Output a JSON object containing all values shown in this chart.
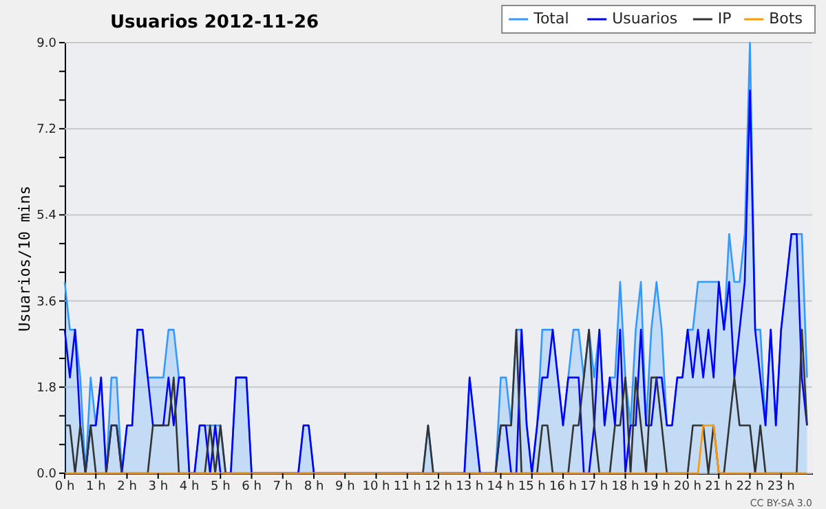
{
  "chart_data": {
    "type": "line",
    "title": "Usuarios  2012-11-26",
    "ylabel": "Usuarios/10 mins",
    "annotations": [
      "CC BY-SA 3.0"
    ],
    "x": [
      0,
      0.167,
      0.333,
      0.5,
      0.667,
      0.833,
      1,
      1.167,
      1.333,
      1.5,
      1.667,
      1.833,
      2,
      2.167,
      2.333,
      2.5,
      2.667,
      2.833,
      3,
      3.167,
      3.333,
      3.5,
      3.667,
      3.833,
      4,
      4.167,
      4.333,
      4.5,
      4.667,
      4.833,
      5,
      5.167,
      5.333,
      5.5,
      5.667,
      5.833,
      6,
      6.167,
      6.333,
      6.5,
      6.667,
      6.833,
      7,
      7.167,
      7.333,
      7.5,
      7.667,
      7.833,
      8,
      8.167,
      8.333,
      8.5,
      8.667,
      8.833,
      9,
      9.167,
      9.333,
      9.5,
      9.667,
      9.833,
      10,
      10.167,
      10.333,
      10.5,
      10.667,
      10.833,
      11,
      11.167,
      11.333,
      11.5,
      11.667,
      11.833,
      12,
      12.167,
      12.333,
      12.5,
      12.667,
      12.833,
      13,
      13.167,
      13.333,
      13.5,
      13.667,
      13.833,
      14,
      14.167,
      14.333,
      14.5,
      14.667,
      14.833,
      15,
      15.167,
      15.333,
      15.5,
      15.667,
      15.833,
      16,
      16.167,
      16.333,
      16.5,
      16.667,
      16.833,
      17,
      17.167,
      17.333,
      17.5,
      17.667,
      17.833,
      18,
      18.167,
      18.333,
      18.5,
      18.667,
      18.833,
      19,
      19.167,
      19.333,
      19.5,
      19.667,
      19.833,
      20,
      20.167,
      20.333,
      20.5,
      20.667,
      20.833,
      21,
      21.167,
      21.333,
      21.5,
      21.667,
      21.833,
      22,
      22.167,
      22.333,
      22.5,
      22.667,
      22.833,
      23,
      23.167,
      23.333,
      23.5,
      23.667,
      23.833
    ],
    "series": [
      {
        "name": "Total",
        "type": "area",
        "color": "#3399ff",
        "values": [
          4,
          3,
          3,
          2,
          0,
          2,
          1,
          2,
          0,
          2,
          2,
          0,
          1,
          1,
          3,
          3,
          2,
          2,
          2,
          2,
          3,
          3,
          2,
          2,
          0,
          0,
          1,
          1,
          1,
          1,
          1,
          0,
          0,
          2,
          2,
          2,
          0,
          0,
          0,
          0,
          0,
          0,
          0,
          0,
          0,
          0,
          1,
          1,
          0,
          0,
          0,
          0,
          0,
          0,
          0,
          0,
          0,
          0,
          0,
          0,
          0,
          0,
          0,
          0,
          0,
          0,
          0,
          0,
          0,
          0,
          1,
          0,
          0,
          0,
          0,
          0,
          0,
          0,
          2,
          1,
          0,
          0,
          0,
          0,
          2,
          2,
          1,
          3,
          3,
          1,
          0,
          1,
          3,
          3,
          3,
          2,
          1,
          2,
          3,
          3,
          2,
          3,
          2,
          3,
          1,
          2,
          2,
          4,
          2,
          1,
          3,
          4,
          1,
          3,
          4,
          3,
          1,
          1,
          2,
          2,
          3,
          3,
          4,
          4,
          4,
          4,
          4,
          3,
          5,
          4,
          4,
          5,
          9,
          3,
          3,
          1,
          3,
          1,
          3,
          4,
          5,
          5,
          5,
          2
        ]
      },
      {
        "name": "Usuarios",
        "color": "#0000ff",
        "values": [
          3,
          2,
          3,
          1,
          0,
          1,
          1,
          2,
          0,
          1,
          1,
          0,
          1,
          1,
          3,
          3,
          2,
          1,
          1,
          1,
          2,
          1,
          2,
          2,
          0,
          0,
          1,
          1,
          0,
          1,
          0,
          0,
          0,
          2,
          2,
          2,
          0,
          0,
          0,
          0,
          0,
          0,
          0,
          0,
          0,
          0,
          1,
          1,
          0,
          0,
          0,
          0,
          0,
          0,
          0,
          0,
          0,
          0,
          0,
          0,
          0,
          0,
          0,
          0,
          0,
          0,
          0,
          0,
          0,
          0,
          0,
          0,
          0,
          0,
          0,
          0,
          0,
          0,
          2,
          1,
          0,
          0,
          0,
          0,
          1,
          1,
          0,
          0,
          3,
          1,
          0,
          1,
          2,
          2,
          3,
          2,
          1,
          2,
          2,
          2,
          0,
          0,
          1,
          3,
          1,
          2,
          1,
          3,
          0,
          1,
          1,
          3,
          1,
          1,
          2,
          2,
          1,
          1,
          2,
          2,
          3,
          2,
          3,
          2,
          3,
          2,
          4,
          3,
          4,
          2,
          3,
          4,
          8,
          3,
          2,
          1,
          3,
          1,
          3,
          4,
          5,
          5,
          2,
          1
        ]
      },
      {
        "name": "IP",
        "color": "#333333",
        "values": [
          1,
          1,
          0,
          1,
          0,
          1,
          0,
          0,
          0,
          1,
          1,
          0,
          0,
          0,
          0,
          0,
          0,
          1,
          1,
          1,
          1,
          2,
          0,
          0,
          0,
          0,
          0,
          0,
          1,
          0,
          1,
          0,
          0,
          0,
          0,
          0,
          0,
          0,
          0,
          0,
          0,
          0,
          0,
          0,
          0,
          0,
          0,
          0,
          0,
          0,
          0,
          0,
          0,
          0,
          0,
          0,
          0,
          0,
          0,
          0,
          0,
          0,
          0,
          0,
          0,
          0,
          0,
          0,
          0,
          0,
          1,
          0,
          0,
          0,
          0,
          0,
          0,
          0,
          0,
          0,
          0,
          0,
          0,
          0,
          1,
          1,
          1,
          3,
          0,
          0,
          0,
          0,
          1,
          1,
          0,
          0,
          0,
          0,
          1,
          1,
          2,
          3,
          1,
          0,
          0,
          0,
          1,
          1,
          2,
          0,
          2,
          1,
          0,
          2,
          2,
          1,
          0,
          0,
          0,
          0,
          0,
          1,
          1,
          1,
          0,
          1,
          0,
          0,
          1,
          2,
          1,
          1,
          1,
          0,
          1,
          0,
          0,
          0,
          0,
          0,
          0,
          0,
          3,
          1
        ]
      },
      {
        "name": "Bots",
        "color": "#ff9900",
        "values": [
          0,
          0,
          0,
          0,
          0,
          0,
          0,
          0,
          0,
          0,
          0,
          0,
          0,
          0,
          0,
          0,
          0,
          0,
          0,
          0,
          0,
          0,
          0,
          0,
          0,
          0,
          0,
          0,
          0,
          0,
          0,
          0,
          0,
          0,
          0,
          0,
          0,
          0,
          0,
          0,
          0,
          0,
          0,
          0,
          0,
          0,
          0,
          0,
          0,
          0,
          0,
          0,
          0,
          0,
          0,
          0,
          0,
          0,
          0,
          0,
          0,
          0,
          0,
          0,
          0,
          0,
          0,
          0,
          0,
          0,
          0,
          0,
          0,
          0,
          0,
          0,
          0,
          0,
          0,
          0,
          0,
          0,
          0,
          0,
          0,
          0,
          0,
          0,
          0,
          0,
          0,
          0,
          0,
          0,
          0,
          0,
          0,
          0,
          0,
          0,
          0,
          0,
          0,
          0,
          0,
          0,
          0,
          0,
          0,
          0,
          0,
          0,
          0,
          0,
          0,
          0,
          0,
          0,
          0,
          0,
          0,
          0,
          0,
          1,
          1,
          1,
          0,
          0,
          0,
          0,
          0,
          0,
          0,
          0,
          0,
          0,
          0,
          0,
          0,
          0,
          0,
          0,
          0,
          0
        ]
      }
    ],
    "xlim": [
      0,
      24
    ],
    "xticks": [
      {
        "value": 0,
        "label": "0 h"
      },
      {
        "value": 1,
        "label": "1 h"
      },
      {
        "value": 2,
        "label": "2 h"
      },
      {
        "value": 3,
        "label": "3 h"
      },
      {
        "value": 4,
        "label": "4 h"
      },
      {
        "value": 5,
        "label": "5 h"
      },
      {
        "value": 6,
        "label": "6 h"
      },
      {
        "value": 7,
        "label": "7 h"
      },
      {
        "value": 8,
        "label": "8 h"
      },
      {
        "value": 9,
        "label": "9 h"
      },
      {
        "value": 10,
        "label": "10 h"
      },
      {
        "value": 11,
        "label": "11 h"
      },
      {
        "value": 12,
        "label": "12 h"
      },
      {
        "value": 13,
        "label": "13 h"
      },
      {
        "value": 14,
        "label": "14 h"
      },
      {
        "value": 15,
        "label": "15 h"
      },
      {
        "value": 16,
        "label": "16 h"
      },
      {
        "value": 17,
        "label": "17 h"
      },
      {
        "value": 18,
        "label": "18 h"
      },
      {
        "value": 19,
        "label": "19 h"
      },
      {
        "value": 20,
        "label": "20 h"
      },
      {
        "value": 21,
        "label": "21 h"
      },
      {
        "value": 22,
        "label": "22 h"
      },
      {
        "value": 23,
        "label": "23 h"
      }
    ],
    "ylim": [
      0,
      9
    ],
    "yticks": [
      {
        "value": 0,
        "label": "0.0"
      },
      {
        "value": 0.6,
        "label": null
      },
      {
        "value": 1.2,
        "label": null
      },
      {
        "value": 1.8,
        "label": "1.8"
      },
      {
        "value": 2.4,
        "label": null
      },
      {
        "value": 3,
        "label": null
      },
      {
        "value": 3.6,
        "label": "3.6"
      },
      {
        "value": 4.2,
        "label": null
      },
      {
        "value": 4.8,
        "label": null
      },
      {
        "value": 5.4,
        "label": "5.4"
      },
      {
        "value": 6,
        "label": null
      },
      {
        "value": 6.6,
        "label": null
      },
      {
        "value": 7.2,
        "label": "7.2"
      },
      {
        "value": 7.8,
        "label": null
      },
      {
        "value": 8.4,
        "label": null
      },
      {
        "value": 9,
        "label": "9.0"
      }
    ],
    "grid": "y",
    "legend": "top right"
  }
}
